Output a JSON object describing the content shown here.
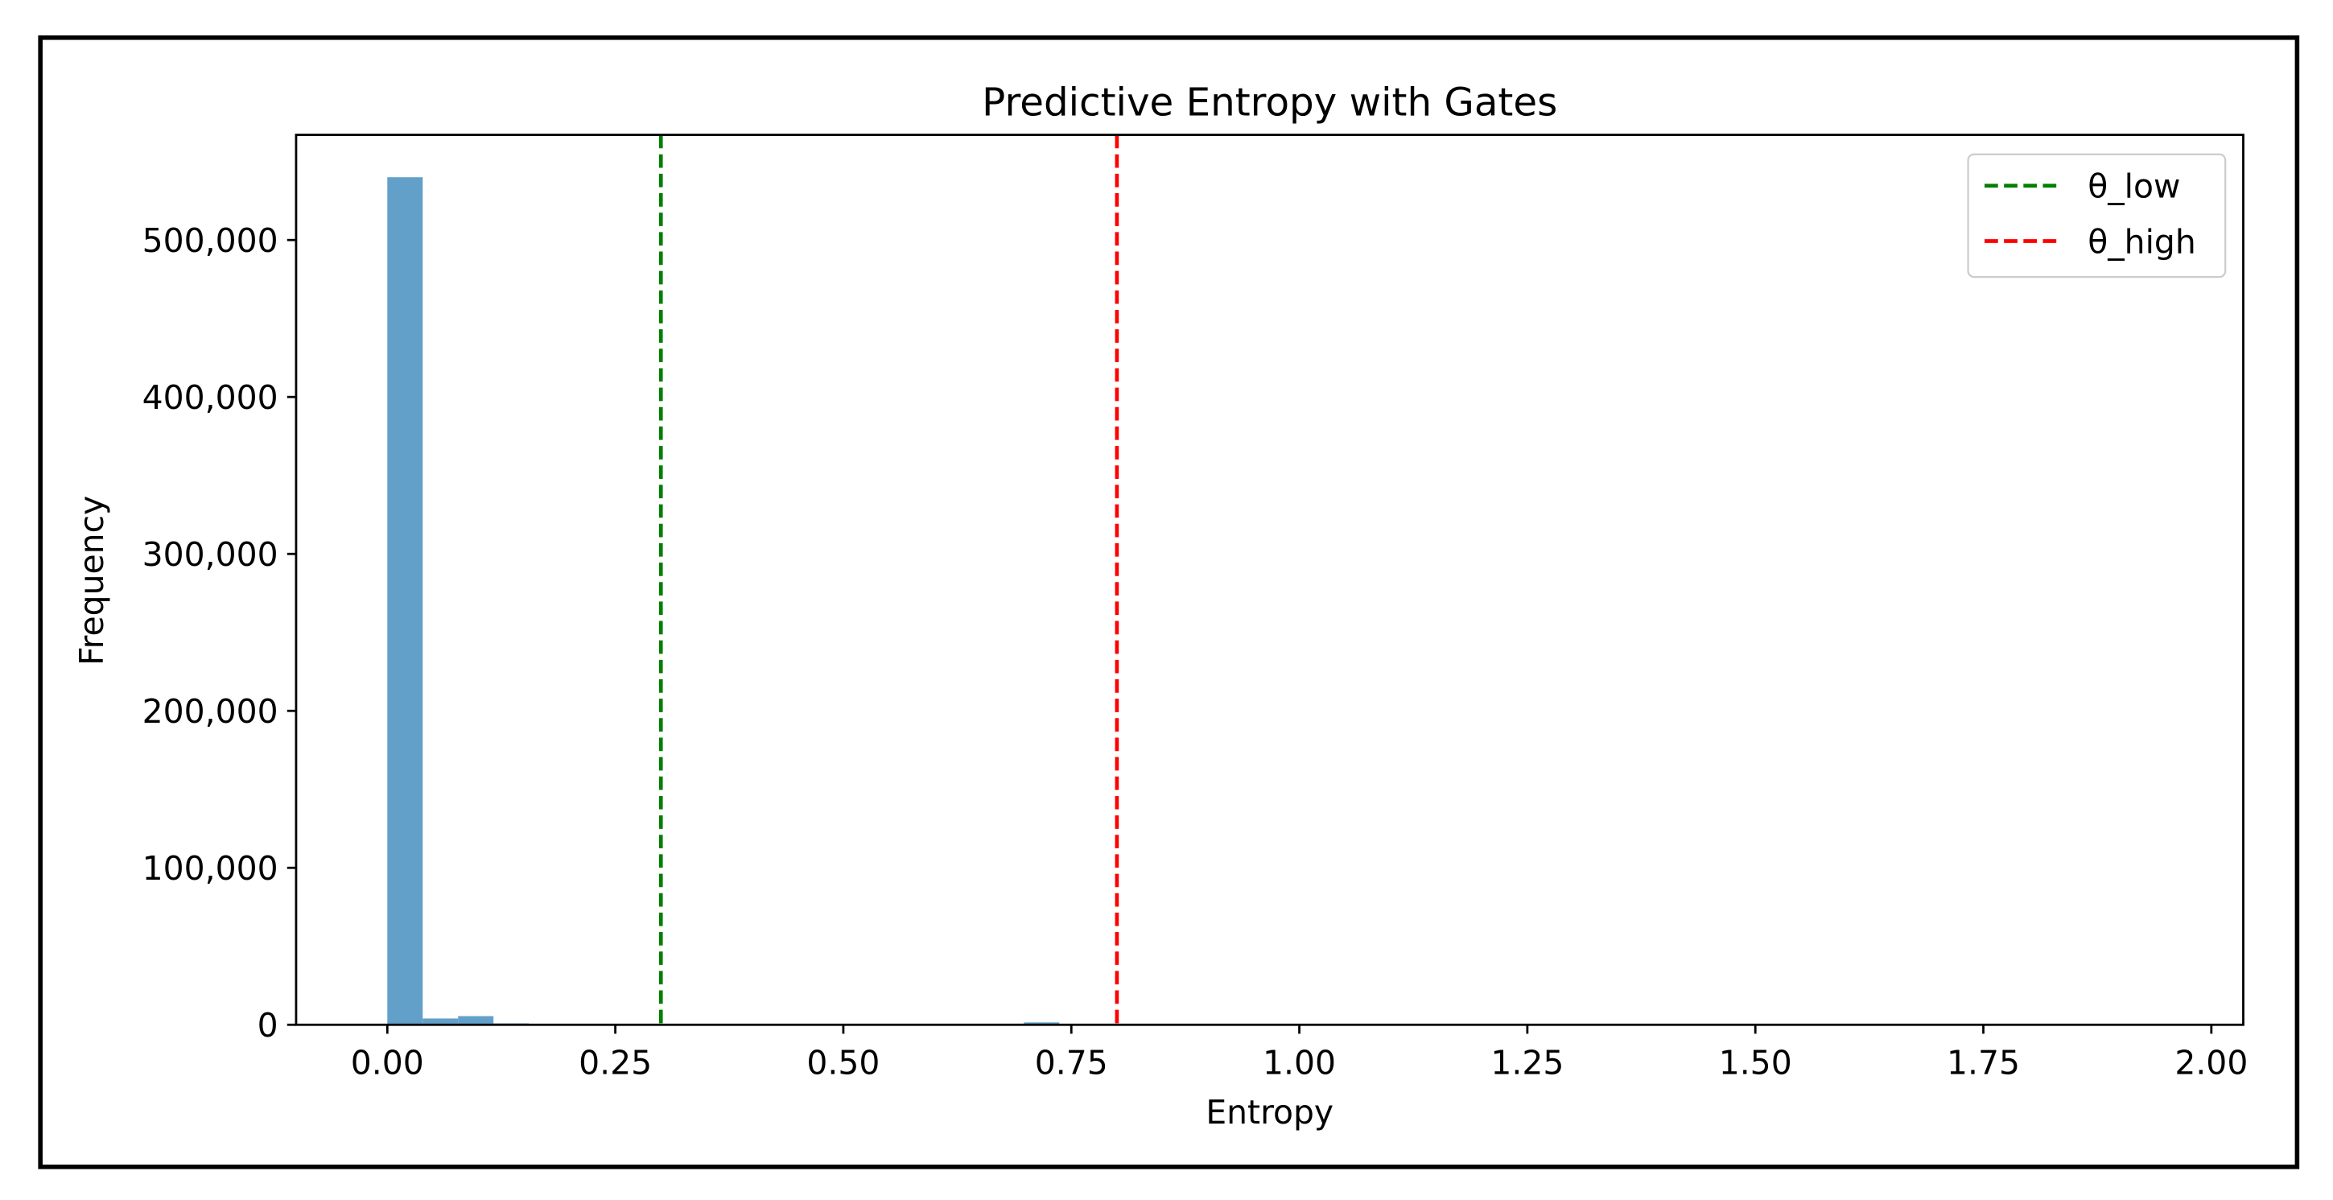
{
  "chart_data": {
    "type": "bar",
    "title": "Predictive Entropy with Gates",
    "xlabel": "Entropy",
    "ylabel": "Frequency",
    "xlim": [
      -0.1,
      2.035
    ],
    "ylim": [
      0,
      567000
    ],
    "grid": false,
    "bin_width": 0.0388,
    "bins": [
      {
        "x0": 0.0,
        "count": 540000
      },
      {
        "x0": 0.0388,
        "count": 4000
      },
      {
        "x0": 0.0776,
        "count": 5500
      },
      {
        "x0": 0.1164,
        "count": 900
      },
      {
        "x0": 0.698,
        "count": 1500
      }
    ],
    "bar_color": "#62a0ca",
    "xticks": [
      "0.00",
      "0.25",
      "0.50",
      "0.75",
      "1.00",
      "1.25",
      "1.50",
      "1.75",
      "2.00"
    ],
    "xtick_values": [
      0,
      0.25,
      0.5,
      0.75,
      1.0,
      1.25,
      1.5,
      1.75,
      2.0
    ],
    "yticks": [
      "0",
      "100,000",
      "200,000",
      "300,000",
      "400,000",
      "500,000"
    ],
    "ytick_values": [
      0,
      100000,
      200000,
      300000,
      400000,
      500000
    ],
    "vlines": [
      {
        "name": "θ_low",
        "x": 0.3,
        "color": "#008000"
      },
      {
        "name": "θ_high",
        "x": 0.8,
        "color": "#ff0000"
      }
    ],
    "legend": {
      "placement": "top-right",
      "entries": [
        "θ_low",
        "θ_high"
      ]
    }
  }
}
